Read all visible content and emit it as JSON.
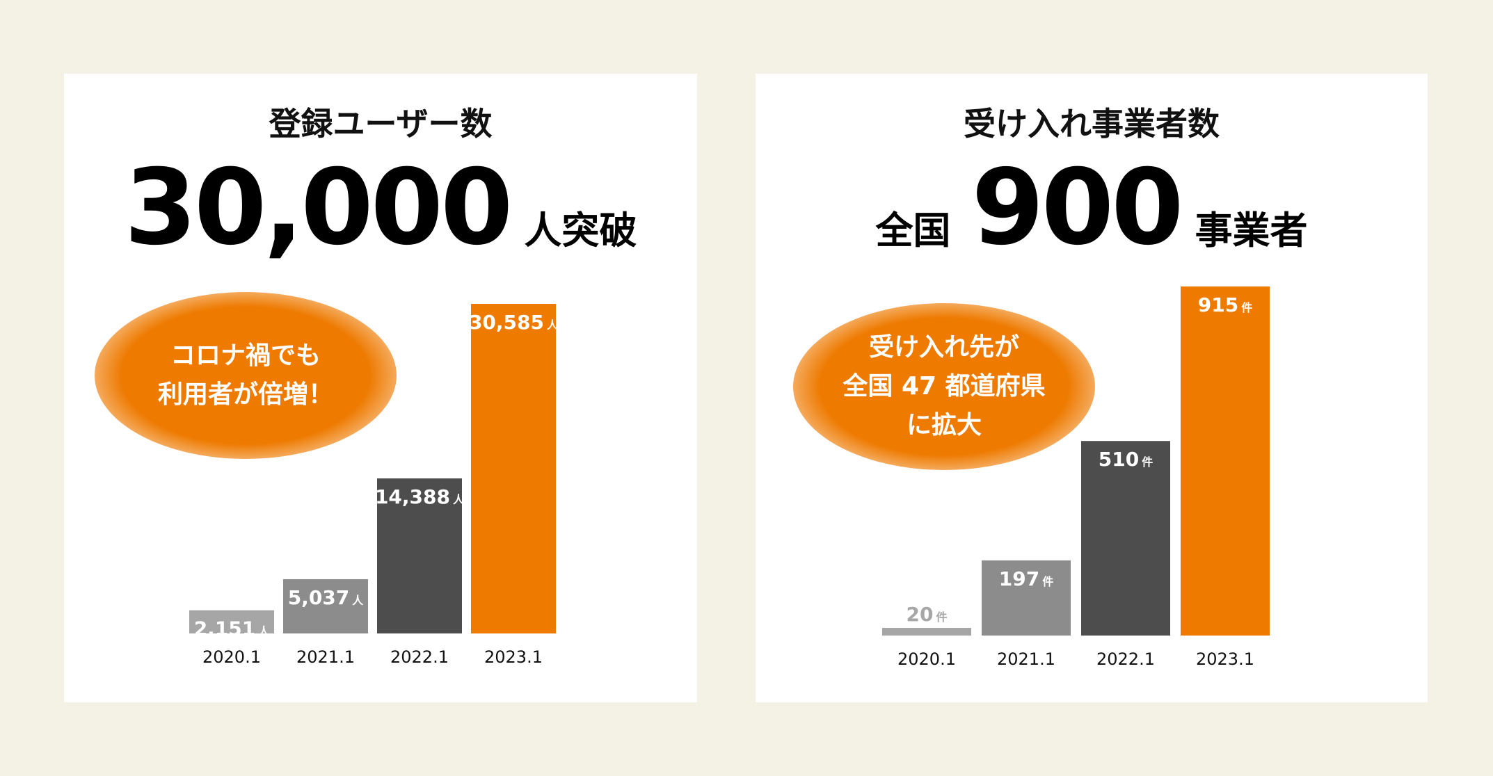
{
  "left": {
    "title": "登録ユーザー数",
    "headline_number": "30,000",
    "headline_suffix": "人突破",
    "callout": "コロナ禍でも\n利用者が倍増！"
  },
  "right": {
    "title": "受け入れ事業者数",
    "headline_prefix": "全国",
    "headline_number": "900",
    "headline_suffix": "事業者",
    "callout": "受け入れ先が\n全国 47 都道府県\nに拡大"
  },
  "colors": {
    "orange": "#ee7a00",
    "dark_gray": "#4d4d4d",
    "mid_gray": "#8c8c8c",
    "light_gray": "#a6a6a6",
    "background": "#f4f2e4"
  },
  "chart_data": [
    {
      "type": "bar",
      "categories": [
        "2020.1",
        "2021.1",
        "2022.1",
        "2023.1"
      ],
      "values": [
        2151,
        5037,
        14388,
        30585
      ],
      "labels": [
        "2,151",
        "5,037",
        "14,388",
        "30,585"
      ],
      "unit": "人",
      "bar_colors": [
        "#a6a6a6",
        "#8c8c8c",
        "#4d4d4d",
        "#ee7a00"
      ],
      "ylim": [
        0,
        30585
      ]
    },
    {
      "type": "bar",
      "categories": [
        "2020.1",
        "2021.1",
        "2022.1",
        "2023.1"
      ],
      "values": [
        20,
        197,
        510,
        915
      ],
      "labels": [
        "20",
        "197",
        "510",
        "915"
      ],
      "unit": "件",
      "bar_colors": [
        "#a6a6a6",
        "#8c8c8c",
        "#4d4d4d",
        "#ee7a00"
      ],
      "ylim": [
        0,
        915
      ]
    }
  ]
}
